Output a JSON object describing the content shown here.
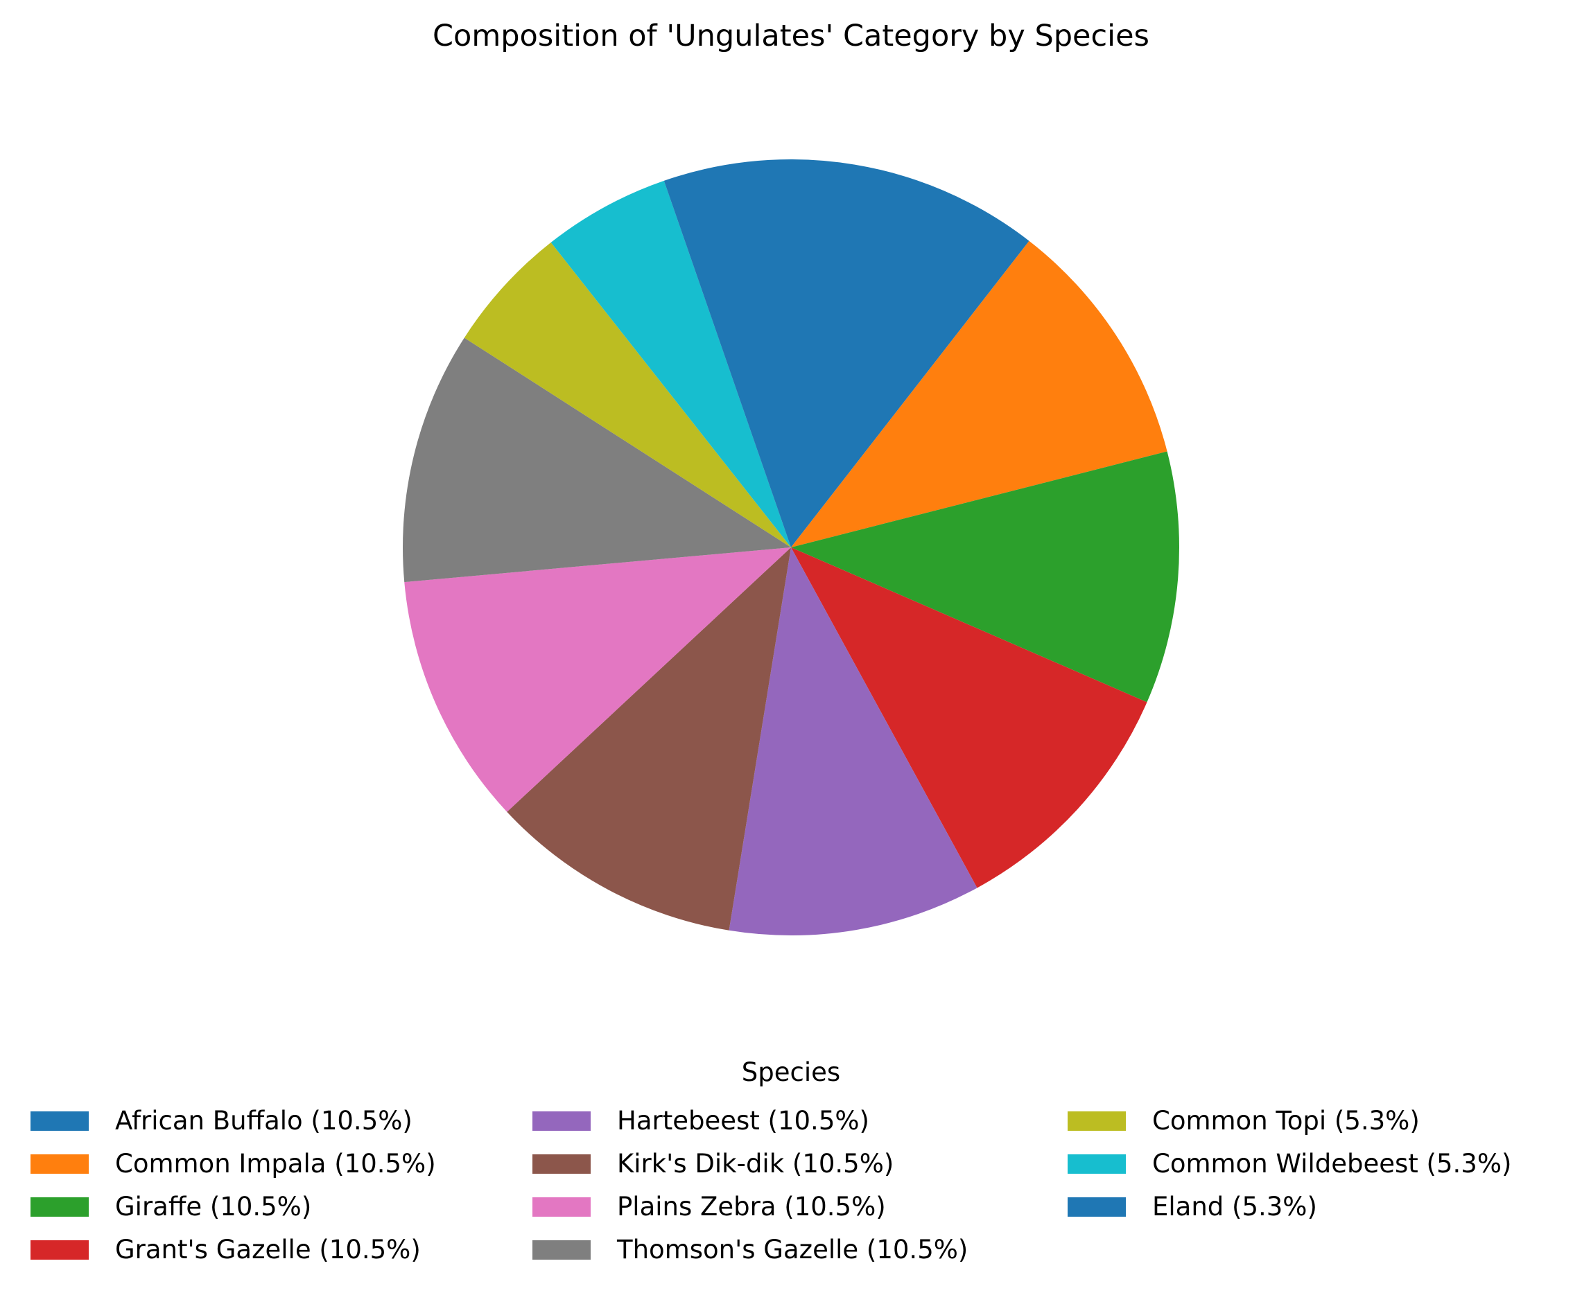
{
  "chart_data": {
    "type": "pie",
    "title": "Composition of 'Ungulates' Category by Species",
    "start": "top",
    "direction": "clockwise",
    "legend": {
      "title": "Species",
      "placement": "bottom-center",
      "columns": 3
    },
    "slices": [
      {
        "label": "African Buffalo (10.5%)",
        "value": 10.5,
        "color": "#1f77b4"
      },
      {
        "label": "Common Impala (10.5%)",
        "value": 10.5,
        "color": "#ff7f0e"
      },
      {
        "label": "Giraffe (10.5%)",
        "value": 10.5,
        "color": "#2ca02c"
      },
      {
        "label": "Grant's Gazelle (10.5%)",
        "value": 10.5,
        "color": "#d62728"
      },
      {
        "label": "Hartebeest (10.5%)",
        "value": 10.5,
        "color": "#9467bd"
      },
      {
        "label": "Kirk's Dik-dik  (10.5%)",
        "value": 10.5,
        "color": "#8c564b"
      },
      {
        "label": "Plains Zebra (10.5%)",
        "value": 10.5,
        "color": "#e377c2"
      },
      {
        "label": "Thomson's Gazelle (10.5%)",
        "value": 10.5,
        "color": "#7f7f7f"
      },
      {
        "label": "Common Topi (5.3%)",
        "value": 5.3,
        "color": "#bcbd22"
      },
      {
        "label": "Common Wildebeest (5.3%)",
        "value": 5.3,
        "color": "#17becf"
      },
      {
        "label": "Eland (5.3%)",
        "value": 5.3,
        "color": "#1f77b4"
      }
    ]
  }
}
